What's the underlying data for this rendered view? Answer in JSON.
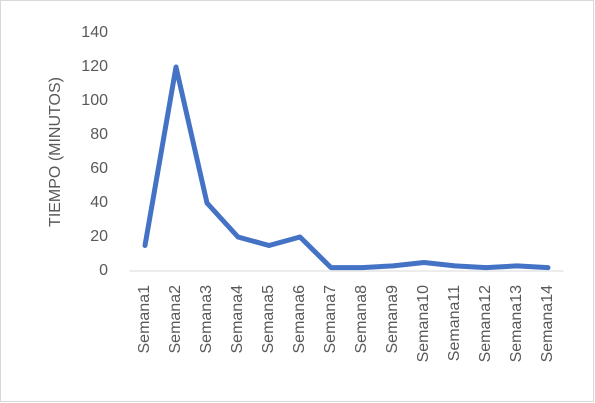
{
  "chart_data": {
    "type": "line",
    "y_label": "TIEMPO (MINUTOS)",
    "categories": [
      "Semana1",
      "Semana2",
      "Semana3",
      "Semana4",
      "Semana5",
      "Semana6",
      "Semana7",
      "Semana8",
      "Semana9",
      "Semana10",
      "Semana11",
      "Semana12",
      "Semana13",
      "Semana14"
    ],
    "values": [
      15,
      120,
      40,
      20,
      15,
      20,
      2,
      2,
      3,
      5,
      3,
      2,
      3,
      2
    ],
    "color": "#4472c4",
    "ylim": [
      0,
      140
    ],
    "yticks": [
      0,
      20,
      40,
      60,
      80,
      100,
      120,
      140
    ],
    "grid": false
  }
}
